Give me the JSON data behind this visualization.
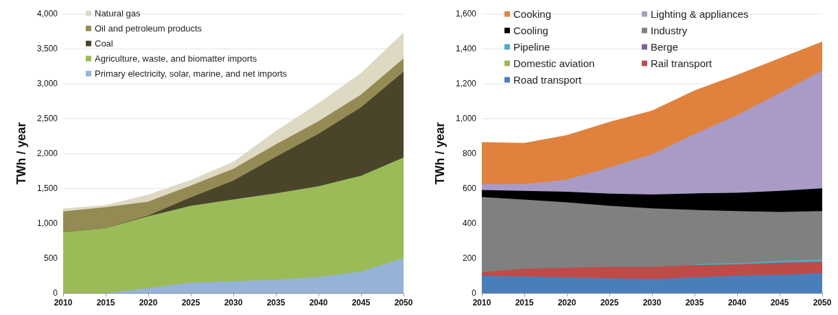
{
  "chart_data": [
    {
      "type": "area",
      "stacked": true,
      "ylabel": "TWh / year",
      "legend": "top left",
      "grid": "y",
      "x": [
        2010,
        2015,
        2020,
        2025,
        2030,
        2035,
        2040,
        2045,
        2050
      ],
      "xlim": [
        2010,
        2050
      ],
      "xticks": [
        2010,
        2015,
        2020,
        2025,
        2030,
        2035,
        2040,
        2045,
        2050
      ],
      "ylim": [
        0,
        4000
      ],
      "yticks": [
        0,
        500,
        {
          "value": 1000,
          "label": "1,000"
        },
        {
          "value": 1500,
          "label": "1,500"
        },
        {
          "value": 2000,
          "label": "2,000"
        },
        {
          "value": 2500,
          "label": "2,500"
        },
        {
          "value": 3000,
          "label": "3,000"
        },
        {
          "value": 3500,
          "label": "3,500"
        },
        {
          "value": 4000,
          "label": "4,000"
        }
      ],
      "series": [
        {
          "name": "Primary electricity, solar, marine, and net imports",
          "color": "#95b3d7",
          "values": [
            0,
            0,
            70,
            150,
            170,
            190,
            230,
            310,
            500
          ]
        },
        {
          "name": "Agriculture, waste, and biomatter imports",
          "color": "#9bbb59",
          "values": [
            870,
            930,
            1030,
            1100,
            1170,
            1240,
            1300,
            1370,
            1440
          ]
        },
        {
          "name": "Coal",
          "color": "#4a452a",
          "values": [
            0,
            0,
            10,
            120,
            270,
            520,
            750,
            980,
            1230
          ]
        },
        {
          "name": "Oil and petroleum products",
          "color": "#948a54",
          "values": [
            300,
            300,
            200,
            170,
            170,
            180,
            180,
            180,
            190
          ]
        },
        {
          "name": "Natural gas",
          "color": "#ddd9c3",
          "values": [
            40,
            30,
            100,
            80,
            100,
            190,
            260,
            310,
            370
          ]
        }
      ]
    },
    {
      "type": "area",
      "stacked": true,
      "ylabel": "TWh / year",
      "legend": "top left",
      "grid": "y",
      "x": [
        2010,
        2015,
        2020,
        2025,
        2030,
        2035,
        2040,
        2045,
        2050
      ],
      "xlim": [
        2010,
        2050
      ],
      "xticks": [
        2010,
        2015,
        2020,
        2025,
        2030,
        2035,
        2040,
        2045,
        2050
      ],
      "ylim": [
        0,
        1600
      ],
      "yticks": [
        0,
        200,
        400,
        600,
        800,
        {
          "value": 1000,
          "label": "1,000"
        },
        {
          "value": 1200,
          "label": "1,200"
        },
        {
          "value": 1400,
          "label": "1,400"
        },
        {
          "value": 1600,
          "label": "1,600"
        }
      ],
      "series": [
        {
          "name": "Road transport",
          "color": "#4a7ebb",
          "values": [
            100,
            95,
            90,
            85,
            80,
            90,
            100,
            105,
            115
          ]
        },
        {
          "name": "Rail transport",
          "color": "#be4b48",
          "values": [
            20,
            45,
            55,
            65,
            70,
            70,
            65,
            70,
            65
          ]
        },
        {
          "name": "Domestic aviation",
          "color": "#98b954",
          "values": [
            null,
            null,
            null,
            null,
            null,
            null,
            null,
            null,
            null
          ]
        },
        {
          "name": "Berge",
          "color": "#7d60a0",
          "values": [
            null,
            null,
            null,
            null,
            null,
            null,
            null,
            null,
            null
          ]
        },
        {
          "name": "Pipeline",
          "color": "#4bacc6",
          "values": [
            null,
            null,
            null,
            null,
            null,
            6,
            8,
            10,
            12
          ]
        },
        {
          "name": "Industry",
          "color": "#808080",
          "values": [
            430,
            395,
            375,
            350,
            335,
            310,
            297,
            280,
            278
          ]
        },
        {
          "name": "Cooling",
          "color": "#000000",
          "values": [
            40,
            50,
            60,
            70,
            80,
            95,
            105,
            120,
            130
          ]
        },
        {
          "name": "Lighting & appliances",
          "color": "#a99bc6",
          "values": [
            35,
            40,
            70,
            150,
            230,
            340,
            445,
            560,
            675
          ]
        },
        {
          "name": "Cooking",
          "color": "#e0823d",
          "values": [
            240,
            235,
            255,
            260,
            250,
            250,
            230,
            200,
            165
          ]
        }
      ]
    }
  ]
}
